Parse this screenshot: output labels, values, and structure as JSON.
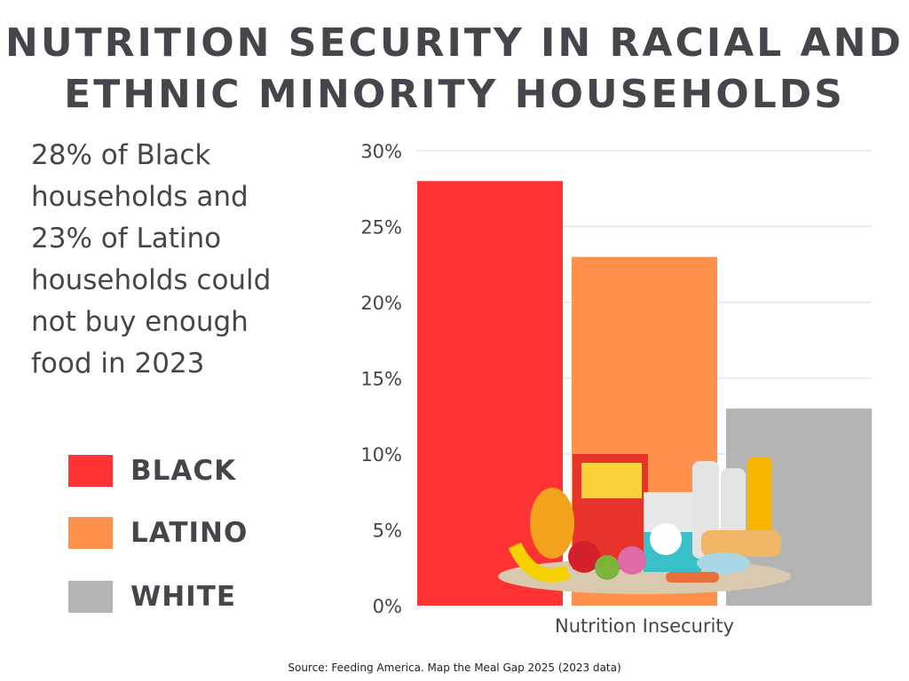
{
  "title_lines": [
    "NUTRITION SECURITY IN RACIAL AND",
    "ETHNIC MINORITY HOUSEHOLDS"
  ],
  "description_lines": [
    "28% of Black",
    "households and",
    "23% of Latino",
    "households could",
    "not buy enough",
    "food in 2023"
  ],
  "source": "Source: Feeding America. Map the Meal Gap 2025 (2023 data)",
  "chart_data": {
    "type": "bar",
    "categories": [
      "Nutrition Insecurity"
    ],
    "series": [
      {
        "name": "BLACK",
        "values": [
          28
        ],
        "color": "#ff3333"
      },
      {
        "name": "LATINO",
        "values": [
          23
        ],
        "color": "#ff914d"
      },
      {
        "name": "WHITE",
        "values": [
          13
        ],
        "color": "#b4b4b4"
      }
    ],
    "xlabel": "",
    "ylabel": "",
    "ylim": [
      0,
      30
    ],
    "yticks": [
      "0%",
      "5%",
      "10%",
      "15%",
      "20%",
      "25%",
      "30%"
    ],
    "grid": true,
    "legend_placement": "left",
    "decoration": "grocery-food-illustration"
  }
}
